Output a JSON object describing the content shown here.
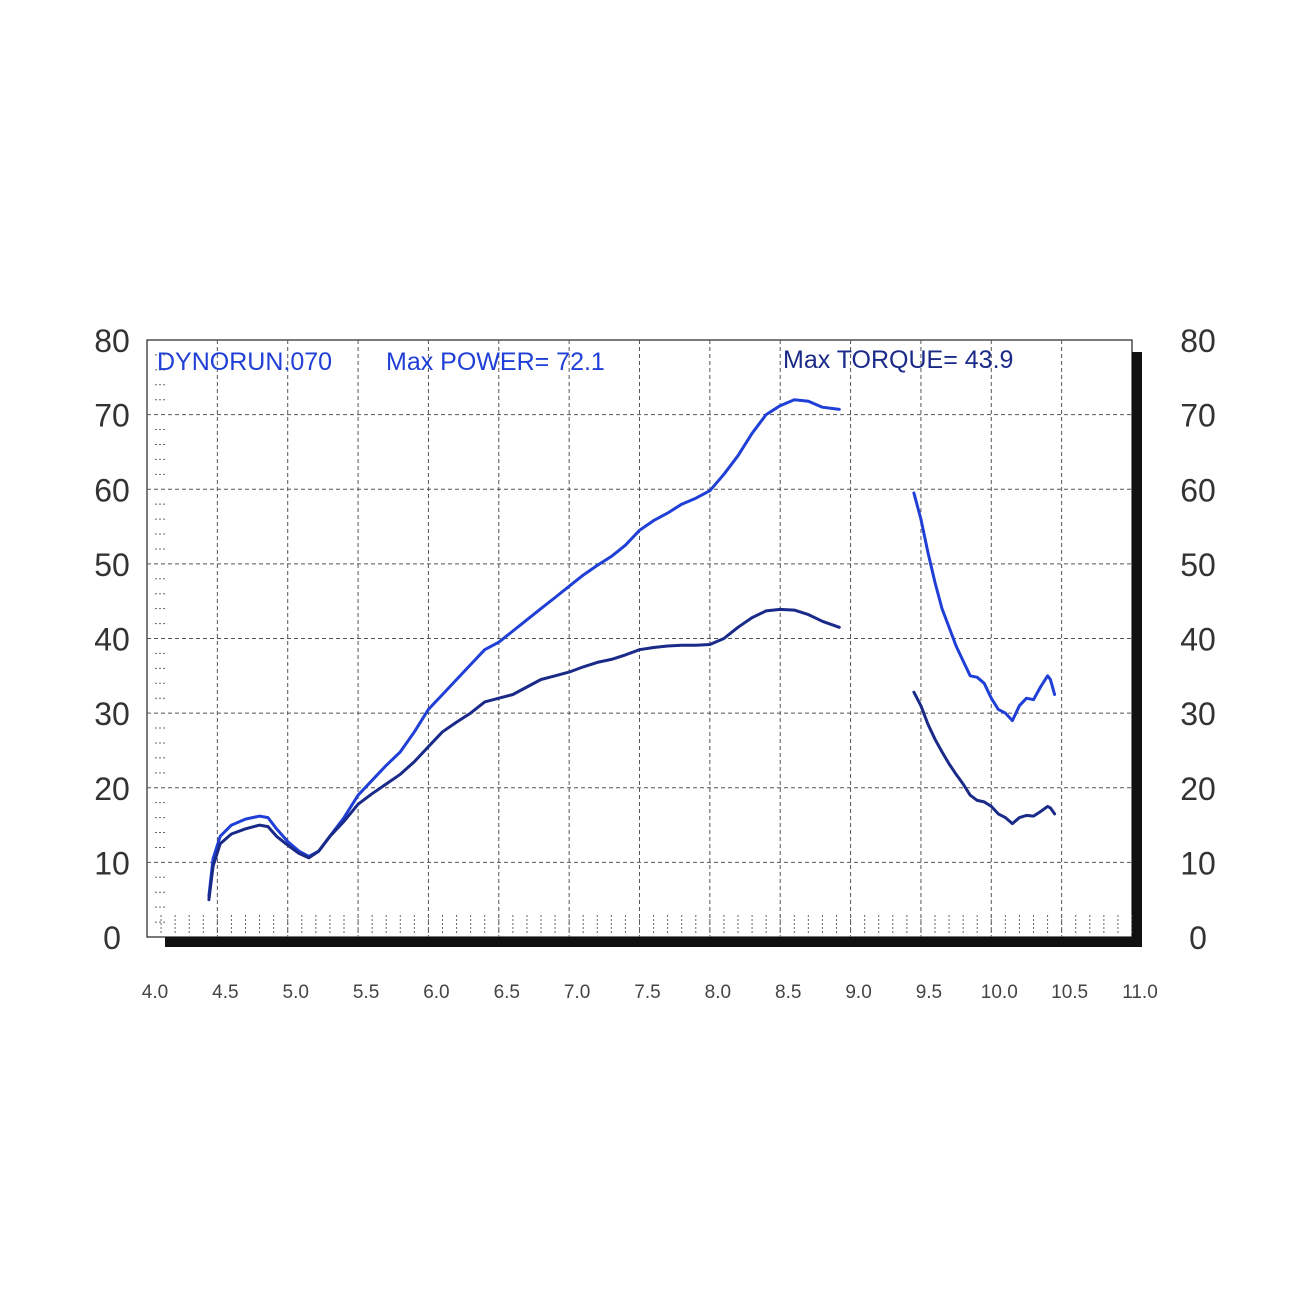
{
  "header": {
    "run_label": "DYNORUN.070",
    "max_power_label": "Max POWER= 72.1",
    "max_torque_label": "Max TORQUE= 43.9"
  },
  "colors": {
    "power": "#1f3fd6",
    "torque": "#1a2a88",
    "grid": "#555555",
    "frame": "#111111",
    "label": "#333333"
  },
  "chart_data": {
    "type": "line",
    "xlim": [
      4.0,
      11.0
    ],
    "ylim": [
      0,
      80
    ],
    "grid": true,
    "x_ticks": [
      "4.0",
      "4.5",
      "5.0",
      "5.5",
      "6.0",
      "6.5",
      "7.0",
      "7.5",
      "8.0",
      "8.5",
      "9.0",
      "9.5",
      "10.0",
      "10.5",
      "11.0"
    ],
    "y_ticks": [
      "0",
      "10",
      "20",
      "30",
      "40",
      "50",
      "60",
      "70",
      "80"
    ],
    "series": [
      {
        "key": "power",
        "segments": [
          [
            [
              4.44,
              5.5
            ],
            [
              4.47,
              10.5
            ],
            [
              4.52,
              13.5
            ],
            [
              4.6,
              15.0
            ],
            [
              4.7,
              15.8
            ],
            [
              4.8,
              16.2
            ],
            [
              4.86,
              16.0
            ],
            [
              4.92,
              14.5
            ],
            [
              5.0,
              12.8
            ],
            [
              5.08,
              11.5
            ],
            [
              5.15,
              10.8
            ],
            [
              5.22,
              11.5
            ],
            [
              5.3,
              13.5
            ],
            [
              5.4,
              16.0
            ],
            [
              5.5,
              19.0
            ],
            [
              5.6,
              21.0
            ],
            [
              5.7,
              23.0
            ],
            [
              5.8,
              24.8
            ],
            [
              5.9,
              27.5
            ],
            [
              6.0,
              30.5
            ],
            [
              6.1,
              32.5
            ],
            [
              6.2,
              34.5
            ],
            [
              6.3,
              36.5
            ],
            [
              6.4,
              38.5
            ],
            [
              6.5,
              39.5
            ],
            [
              6.6,
              41.0
            ],
            [
              6.7,
              42.5
            ],
            [
              6.8,
              44.0
            ],
            [
              6.9,
              45.5
            ],
            [
              7.0,
              47.0
            ],
            [
              7.1,
              48.5
            ],
            [
              7.2,
              49.8
            ],
            [
              7.3,
              51.0
            ],
            [
              7.4,
              52.5
            ],
            [
              7.5,
              54.5
            ],
            [
              7.6,
              55.8
            ],
            [
              7.7,
              56.8
            ],
            [
              7.8,
              58.0
            ],
            [
              7.9,
              58.8
            ],
            [
              8.0,
              59.8
            ],
            [
              8.1,
              62.0
            ],
            [
              8.2,
              64.5
            ],
            [
              8.3,
              67.5
            ],
            [
              8.4,
              70.0
            ],
            [
              8.5,
              71.2
            ],
            [
              8.6,
              72.0
            ],
            [
              8.7,
              71.8
            ],
            [
              8.8,
              71.0
            ],
            [
              8.92,
              70.7
            ]
          ],
          [
            [
              9.45,
              59.5
            ],
            [
              9.5,
              56.0
            ],
            [
              9.55,
              51.5
            ],
            [
              9.6,
              47.5
            ],
            [
              9.65,
              44.0
            ],
            [
              9.7,
              41.5
            ],
            [
              9.75,
              39.0
            ],
            [
              9.8,
              37.0
            ],
            [
              9.85,
              35.0
            ],
            [
              9.9,
              34.8
            ],
            [
              9.95,
              34.0
            ],
            [
              10.0,
              32.0
            ],
            [
              10.05,
              30.5
            ],
            [
              10.1,
              30.0
            ],
            [
              10.15,
              29.0
            ],
            [
              10.2,
              31.0
            ],
            [
              10.25,
              32.0
            ],
            [
              10.3,
              31.8
            ],
            [
              10.35,
              33.5
            ],
            [
              10.4,
              35.0
            ],
            [
              10.42,
              34.5
            ],
            [
              10.45,
              32.5
            ]
          ]
        ]
      },
      {
        "key": "torque",
        "segments": [
          [
            [
              4.44,
              5.0
            ],
            [
              4.47,
              9.5
            ],
            [
              4.52,
              12.5
            ],
            [
              4.6,
              13.8
            ],
            [
              4.7,
              14.5
            ],
            [
              4.8,
              15.0
            ],
            [
              4.86,
              14.8
            ],
            [
              4.92,
              13.5
            ],
            [
              5.0,
              12.3
            ],
            [
              5.08,
              11.2
            ],
            [
              5.15,
              10.6
            ],
            [
              5.22,
              11.5
            ],
            [
              5.3,
              13.5
            ],
            [
              5.4,
              15.5
            ],
            [
              5.5,
              17.8
            ],
            [
              5.6,
              19.2
            ],
            [
              5.7,
              20.5
            ],
            [
              5.8,
              21.8
            ],
            [
              5.9,
              23.5
            ],
            [
              6.0,
              25.5
            ],
            [
              6.1,
              27.5
            ],
            [
              6.2,
              28.8
            ],
            [
              6.3,
              30.0
            ],
            [
              6.4,
              31.5
            ],
            [
              6.5,
              32.0
            ],
            [
              6.6,
              32.5
            ],
            [
              6.7,
              33.5
            ],
            [
              6.8,
              34.5
            ],
            [
              6.9,
              35.0
            ],
            [
              7.0,
              35.5
            ],
            [
              7.1,
              36.2
            ],
            [
              7.2,
              36.8
            ],
            [
              7.3,
              37.2
            ],
            [
              7.4,
              37.8
            ],
            [
              7.5,
              38.5
            ],
            [
              7.6,
              38.8
            ],
            [
              7.7,
              39.0
            ],
            [
              7.8,
              39.1
            ],
            [
              7.9,
              39.1
            ],
            [
              8.0,
              39.2
            ],
            [
              8.1,
              40.0
            ],
            [
              8.2,
              41.5
            ],
            [
              8.3,
              42.8
            ],
            [
              8.4,
              43.7
            ],
            [
              8.5,
              43.9
            ],
            [
              8.6,
              43.8
            ],
            [
              8.7,
              43.2
            ],
            [
              8.8,
              42.3
            ],
            [
              8.92,
              41.5
            ]
          ],
          [
            [
              9.45,
              32.8
            ],
            [
              9.5,
              31.0
            ],
            [
              9.55,
              28.5
            ],
            [
              9.6,
              26.5
            ],
            [
              9.65,
              24.8
            ],
            [
              9.7,
              23.2
            ],
            [
              9.75,
              21.8
            ],
            [
              9.8,
              20.5
            ],
            [
              9.85,
              19.0
            ],
            [
              9.9,
              18.3
            ],
            [
              9.95,
              18.1
            ],
            [
              10.0,
              17.5
            ],
            [
              10.05,
              16.5
            ],
            [
              10.1,
              16.0
            ],
            [
              10.15,
              15.2
            ],
            [
              10.2,
              16.0
            ],
            [
              10.25,
              16.3
            ],
            [
              10.3,
              16.2
            ],
            [
              10.35,
              16.8
            ],
            [
              10.4,
              17.5
            ],
            [
              10.42,
              17.3
            ],
            [
              10.45,
              16.5
            ]
          ]
        ]
      }
    ]
  }
}
